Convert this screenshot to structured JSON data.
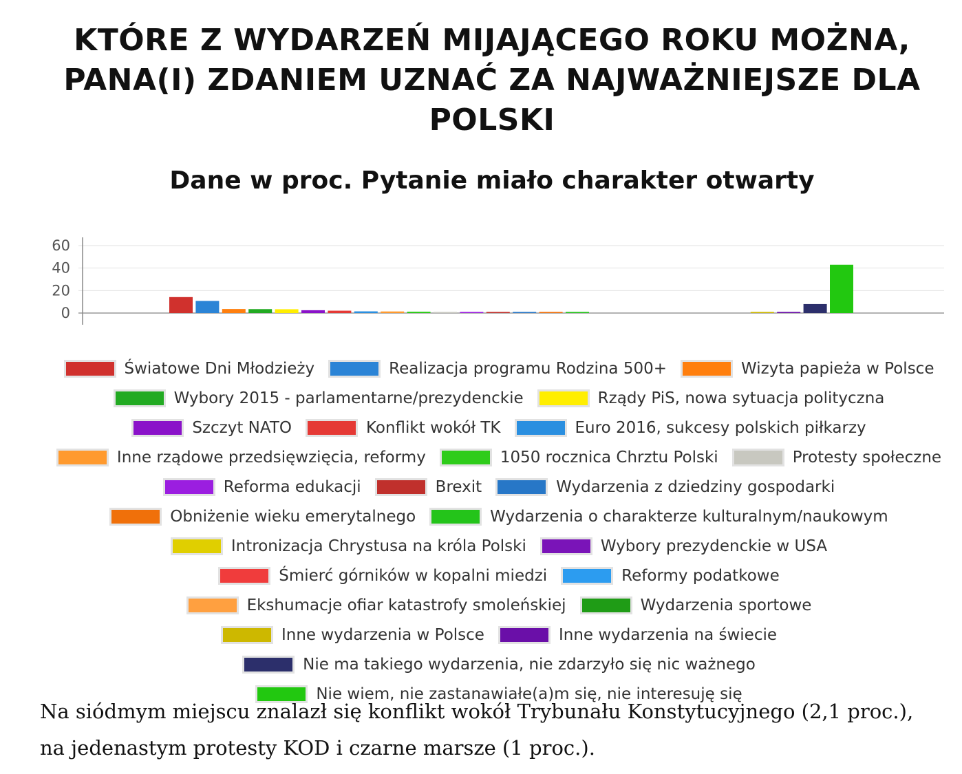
{
  "title": "KTÓRE Z WYDARZEŃ MIJAJĄCEGO ROKU MOŻNA, PANA(I) ZDANIEM UZNAĆ ZA NAJWAŻNIEJSZE DLA POLSKI",
  "subtitle": "Dane w proc. Pytanie miało charakter otwarty",
  "caption": "Na siódmym miejscu znalazł się konflikt wokół Trybunału Konstytucyjnego (2,1 proc.),  na jedenastym protesty KOD i czarne marsze (1 proc.).",
  "chart_data": {
    "type": "bar",
    "ylim": [
      0,
      60
    ],
    "yticks": [
      0,
      20,
      40,
      60
    ],
    "grid": true,
    "legend_position": "bottom",
    "series": [
      {
        "name": "Światowe Dni Młodzieży",
        "value": 14.2,
        "color": "#d0312d"
      },
      {
        "name": "Realizacja programu Rodzina 500+",
        "value": 10.8,
        "color": "#2b84d6"
      },
      {
        "name": "Wizyta papieża w Polsce",
        "value": 3.6,
        "color": "#ff7f0e"
      },
      {
        "name": "Wybory 2015 - parlamentarne/prezydenckie",
        "value": 3.5,
        "color": "#22aa22"
      },
      {
        "name": "Rządy PiS, nowa sytuacja polityczna",
        "value": 3.4,
        "color": "#ffee00"
      },
      {
        "name": "Szczyt NATO",
        "value": 2.5,
        "color": "#8a12c9"
      },
      {
        "name": "Konflikt wokół TK",
        "value": 2.1,
        "color": "#e53935"
      },
      {
        "name": "Euro 2016, sukcesy polskich piłkarzy",
        "value": 1.5,
        "color": "#2a8fe0"
      },
      {
        "name": "Inne rządowe przedsięwzięcia, reformy",
        "value": 1.4,
        "color": "#ff9a2e"
      },
      {
        "name": "1050 rocznica Chrztu Polski",
        "value": 1.2,
        "color": "#2ecc1a"
      },
      {
        "name": "Protesty społeczne",
        "value": 1.0,
        "color": "#c8c8c0"
      },
      {
        "name": "Reforma edukacji",
        "value": 1.0,
        "color": "#9b1ee0"
      },
      {
        "name": "Brexit",
        "value": 1.0,
        "color": "#c0302c"
      },
      {
        "name": "Wydarzenia z dziedziny gospodarki",
        "value": 1.0,
        "color": "#2777c7"
      },
      {
        "name": "Obniżenie wieku emerytalnego",
        "value": 1.0,
        "color": "#f0700a"
      },
      {
        "name": "Wydarzenia o charakterze kulturalnym/naukowym",
        "value": 1.0,
        "color": "#24c41a"
      },
      {
        "name": "Intronizacja Chrystusa na króla Polski",
        "value": 0,
        "color": "#e0cf00"
      },
      {
        "name": "Wybory prezydenckie w USA",
        "value": 0,
        "color": "#7a14b8"
      },
      {
        "name": "Śmierć górników w kopalni miedzi",
        "value": 0,
        "color": "#f03c3c"
      },
      {
        "name": "Reformy podatkowe",
        "value": 0,
        "color": "#2c9cf0"
      },
      {
        "name": "Ekshumacje ofiar katastrofy smoleńskiej",
        "value": 0,
        "color": "#ffa040"
      },
      {
        "name": "Wydarzenia sportowe",
        "value": 0,
        "color": "#1f9c16"
      },
      {
        "name": "Inne wydarzenia w Polsce",
        "value": 1.0,
        "color": "#cdb800"
      },
      {
        "name": "Inne wydarzenia na świecie",
        "value": 1.0,
        "color": "#6a0fa8"
      },
      {
        "name": "Nie ma takiego wydarzenia, nie zdarzyło się nic ważnego",
        "value": 8.0,
        "color": "#2c2f6b"
      },
      {
        "name": "Nie wiem, nie zastanawiałe(a)m się, nie interesuję się",
        "value": 43.0,
        "color": "#22c810"
      }
    ]
  }
}
